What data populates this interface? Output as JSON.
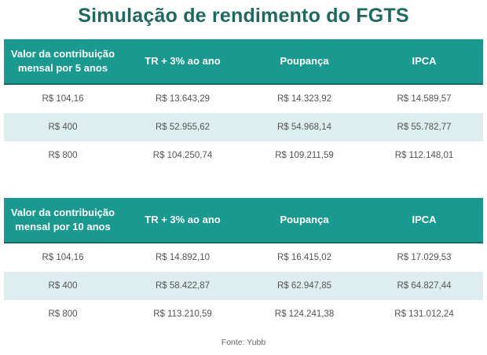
{
  "title": "Simulação de rendimento do FGTS",
  "tables": [
    {
      "headers": [
        "Valor da contribuição mensal por 5 anos",
        "TR + 3% ao ano",
        "Poupança",
        "IPCA"
      ],
      "rows": [
        [
          "R$ 104,16",
          "R$ 13.643,29",
          "R$ 14.323,92",
          "R$ 14.589,57"
        ],
        [
          "R$ 400",
          "R$ 52.955,62",
          "R$ 54.968,14",
          "R$ 55.782,77"
        ],
        [
          "R$ 800",
          "R$ 104.250,74",
          "R$ 109.211,59",
          "R$ 112.148,01"
        ]
      ]
    },
    {
      "headers": [
        "Valor da contribuição mensal por 10 anos",
        "TR + 3% ao ano",
        "Poupança",
        "IPCA"
      ],
      "rows": [
        [
          "R$ 104,16",
          "R$ 14.892,10",
          "R$ 16.415,02",
          "R$ 17.029,53"
        ],
        [
          "R$ 400",
          "R$ 58.422,87",
          "R$ 62.947,85",
          "R$ 64.827,44"
        ],
        [
          "R$ 800",
          "R$ 113.210,59",
          "R$ 124.241,38",
          "R$ 131.012,24"
        ]
      ]
    }
  ],
  "source": "Fonte: Yubb",
  "colors": {
    "header": "#1a9a8f",
    "title": "#1f6a60",
    "alt_row": "#deeeef"
  }
}
